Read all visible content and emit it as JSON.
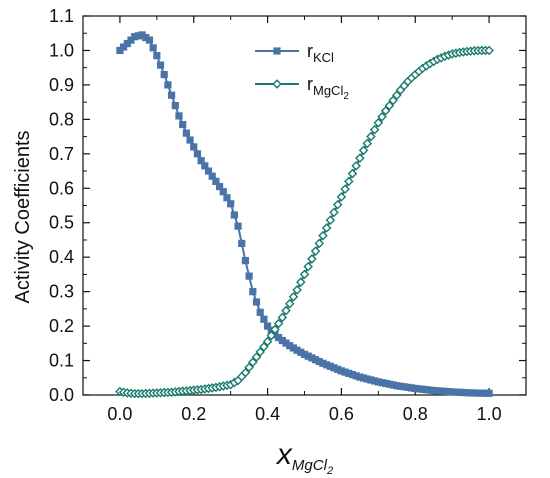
{
  "chart_data": {
    "type": "line",
    "title": "",
    "ylabel": "Activity Coefficients",
    "xlabel": {
      "main": "x",
      "sub_main": "MgCl",
      "sub_sub": "2"
    },
    "xlim": [
      -0.1,
      1.1
    ],
    "ylim": [
      0.0,
      1.1
    ],
    "xticks": [
      "0.0",
      "0.2",
      "0.4",
      "0.6",
      "0.8",
      "1.0"
    ],
    "yticks": [
      "0.0",
      "0.1",
      "0.2",
      "0.3",
      "0.4",
      "0.5",
      "0.6",
      "0.7",
      "0.8",
      "0.9",
      "1.0",
      "1.1"
    ],
    "legend_position": "top-center",
    "series": [
      {
        "name": "rKCl",
        "label": {
          "main": "r",
          "sub": "KCl"
        },
        "color": "#4a74a8",
        "marker": "square",
        "x": [
          0.0,
          0.02,
          0.04,
          0.06,
          0.08,
          0.1,
          0.12,
          0.14,
          0.16,
          0.18,
          0.2,
          0.22,
          0.24,
          0.26,
          0.28,
          0.3,
          0.32,
          0.34,
          0.36,
          0.38,
          0.4,
          0.42,
          0.44,
          0.46,
          0.48,
          0.5,
          0.55,
          0.6,
          0.65,
          0.7,
          0.75,
          0.8,
          0.85,
          0.9,
          0.95,
          1.0
        ],
        "y": [
          1.0,
          1.02,
          1.04,
          1.045,
          1.03,
          0.985,
          0.93,
          0.87,
          0.81,
          0.76,
          0.72,
          0.68,
          0.65,
          0.62,
          0.59,
          0.555,
          0.49,
          0.39,
          0.3,
          0.24,
          0.2,
          0.175,
          0.158,
          0.143,
          0.13,
          0.118,
          0.092,
          0.07,
          0.052,
          0.038,
          0.027,
          0.019,
          0.013,
          0.009,
          0.006,
          0.005
        ]
      },
      {
        "name": "rMgCl2",
        "label": {
          "main": "r",
          "sub": "MgCl",
          "subsub": "2"
        },
        "color": "#1a7a6e",
        "marker": "diamond",
        "x": [
          0.0,
          0.02,
          0.04,
          0.06,
          0.08,
          0.1,
          0.12,
          0.14,
          0.16,
          0.18,
          0.2,
          0.22,
          0.24,
          0.26,
          0.28,
          0.3,
          0.32,
          0.34,
          0.36,
          0.38,
          0.4,
          0.42,
          0.44,
          0.46,
          0.48,
          0.5,
          0.52,
          0.54,
          0.56,
          0.58,
          0.6,
          0.62,
          0.64,
          0.66,
          0.68,
          0.7,
          0.72,
          0.74,
          0.76,
          0.78,
          0.8,
          0.82,
          0.84,
          0.86,
          0.88,
          0.9,
          0.92,
          0.94,
          0.96,
          0.98,
          1.0
        ],
        "y": [
          0.01,
          0.006,
          0.004,
          0.004,
          0.005,
          0.006,
          0.007,
          0.008,
          0.01,
          0.012,
          0.014,
          0.016,
          0.019,
          0.022,
          0.026,
          0.03,
          0.042,
          0.065,
          0.095,
          0.125,
          0.155,
          0.19,
          0.225,
          0.265,
          0.305,
          0.35,
          0.395,
          0.44,
          0.485,
          0.53,
          0.575,
          0.62,
          0.665,
          0.71,
          0.75,
          0.79,
          0.825,
          0.855,
          0.885,
          0.91,
          0.93,
          0.948,
          0.962,
          0.974,
          0.983,
          0.99,
          0.994,
          0.997,
          0.999,
          1.0,
          1.0
        ]
      }
    ]
  }
}
